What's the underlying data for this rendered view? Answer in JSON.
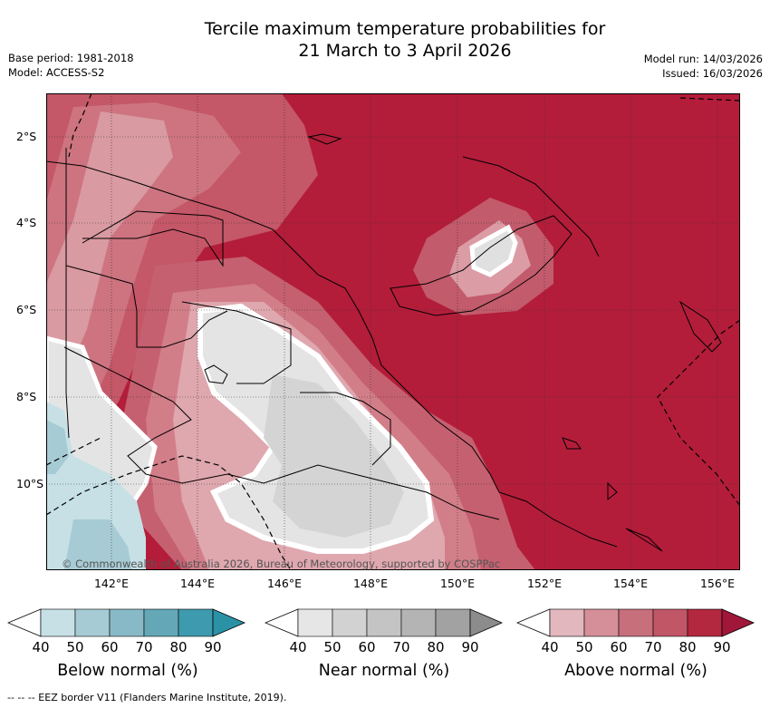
{
  "title": {
    "line1": "Tercile maximum temperature probabilities for",
    "line2": "21 March to 3 April 2026"
  },
  "meta_left": {
    "base_period": "Base period: 1981-2018",
    "model": "Model: ACCESS-S2"
  },
  "meta_right": {
    "model_run": "Model run: 14/03/2026",
    "issued": "Issued: 16/03/2026"
  },
  "map": {
    "latitude_labels": [
      "2°S",
      "4°S",
      "6°S",
      "8°S",
      "10°S"
    ],
    "longitude_labels": [
      "142°E",
      "144°E",
      "146°E",
      "148°E",
      "150°E",
      "152°E",
      "154°E",
      "156°E"
    ],
    "copyright": "© Commonwealth of Australia 2026, Bureau of Meteorology, supported by COSPPac",
    "background_color": "#b31d3a"
  },
  "legends": [
    {
      "label": "Below normal (%)",
      "ticks": [
        "40",
        "50",
        "60",
        "70",
        "80",
        "90"
      ],
      "colors": [
        "#ffffff",
        "#c6e0e6",
        "#a7cbd4",
        "#88b9c6",
        "#64a8b8",
        "#3e9aaf",
        "#2b92a6"
      ]
    },
    {
      "label": "Near normal (%)",
      "ticks": [
        "40",
        "50",
        "60",
        "70",
        "80",
        "90"
      ],
      "colors": [
        "#ffffff",
        "#e6e6e6",
        "#d2d2d2",
        "#c4c4c4",
        "#b4b4b4",
        "#a2a2a2",
        "#8c8c8c"
      ]
    },
    {
      "label": "Above normal (%)",
      "ticks": [
        "40",
        "50",
        "60",
        "70",
        "80",
        "90"
      ],
      "colors": [
        "#ffffff",
        "#e3b7be",
        "#d58f98",
        "#c76f7b",
        "#c05666",
        "#b3283f",
        "#a0173a"
      ]
    }
  ],
  "footnote": "--  --  -- EEZ border V11 (Flanders Marine Institute, 2019)."
}
